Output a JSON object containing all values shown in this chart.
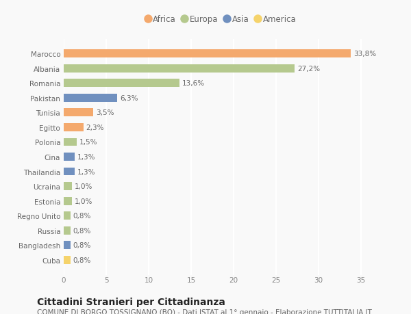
{
  "categories": [
    "Marocco",
    "Albania",
    "Romania",
    "Pakistan",
    "Tunisia",
    "Egitto",
    "Polonia",
    "Cina",
    "Thailandia",
    "Ucraina",
    "Estonia",
    "Regno Unito",
    "Russia",
    "Bangladesh",
    "Cuba"
  ],
  "values": [
    33.8,
    27.2,
    13.6,
    6.3,
    3.5,
    2.3,
    1.5,
    1.3,
    1.3,
    1.0,
    1.0,
    0.8,
    0.8,
    0.8,
    0.8
  ],
  "labels": [
    "33,8%",
    "27,2%",
    "13,6%",
    "6,3%",
    "3,5%",
    "2,3%",
    "1,5%",
    "1,3%",
    "1,3%",
    "1,0%",
    "1,0%",
    "0,8%",
    "0,8%",
    "0,8%",
    "0,8%"
  ],
  "continent": [
    "Africa",
    "Europa",
    "Europa",
    "Asia",
    "Africa",
    "Africa",
    "Europa",
    "Asia",
    "Asia",
    "Europa",
    "Europa",
    "Europa",
    "Europa",
    "Asia",
    "America"
  ],
  "colors": {
    "Africa": "#F4A96D",
    "Europa": "#B5C98E",
    "Asia": "#7090BF",
    "America": "#F5D36B"
  },
  "legend_order": [
    "Africa",
    "Europa",
    "Asia",
    "America"
  ],
  "title": "Cittadini Stranieri per Cittadinanza",
  "subtitle": "COMUNE DI BORGO TOSSIGNANO (BO) - Dati ISTAT al 1° gennaio - Elaborazione TUTTITALIA.IT",
  "xlim": [
    0,
    37
  ],
  "xticks": [
    0,
    5,
    10,
    15,
    20,
    25,
    30,
    35
  ],
  "background_color": "#f9f9f9",
  "bar_height": 0.55,
  "title_fontsize": 10,
  "subtitle_fontsize": 7.5,
  "label_fontsize": 7.5,
  "tick_fontsize": 7.5,
  "legend_fontsize": 8.5
}
